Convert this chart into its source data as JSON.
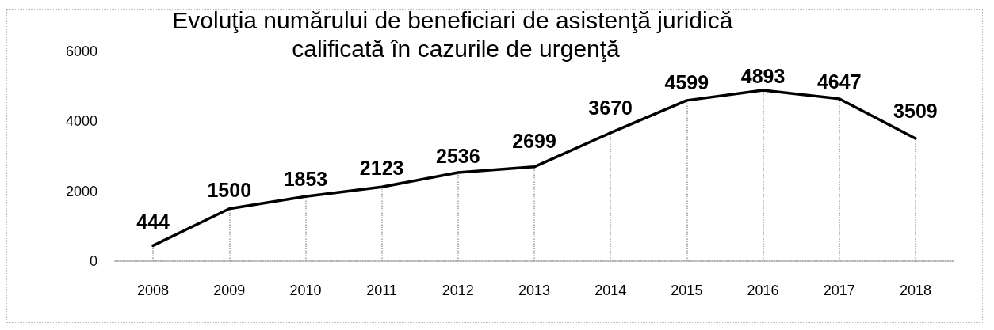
{
  "chart_data": {
    "type": "line",
    "title": "Evoluţia numărului de beneficiari de asistenţă juridică calificată în cazurile de urgenţă",
    "categories": [
      "2008",
      "2009",
      "2010",
      "2011",
      "2012",
      "2013",
      "2014",
      "2015",
      "2016",
      "2017",
      "2018"
    ],
    "series": [
      {
        "color": "#000000",
        "values": [
          444,
          1500,
          1853,
          2123,
          2536,
          2699,
          3670,
          4599,
          4893,
          4647,
          3509
        ]
      }
    ],
    "ylim": [
      0,
      6000
    ],
    "yticks": [
      0,
      2000,
      4000,
      6000
    ],
    "grid": "x",
    "data_labels": true,
    "marker": "none",
    "line_style": "solid"
  }
}
